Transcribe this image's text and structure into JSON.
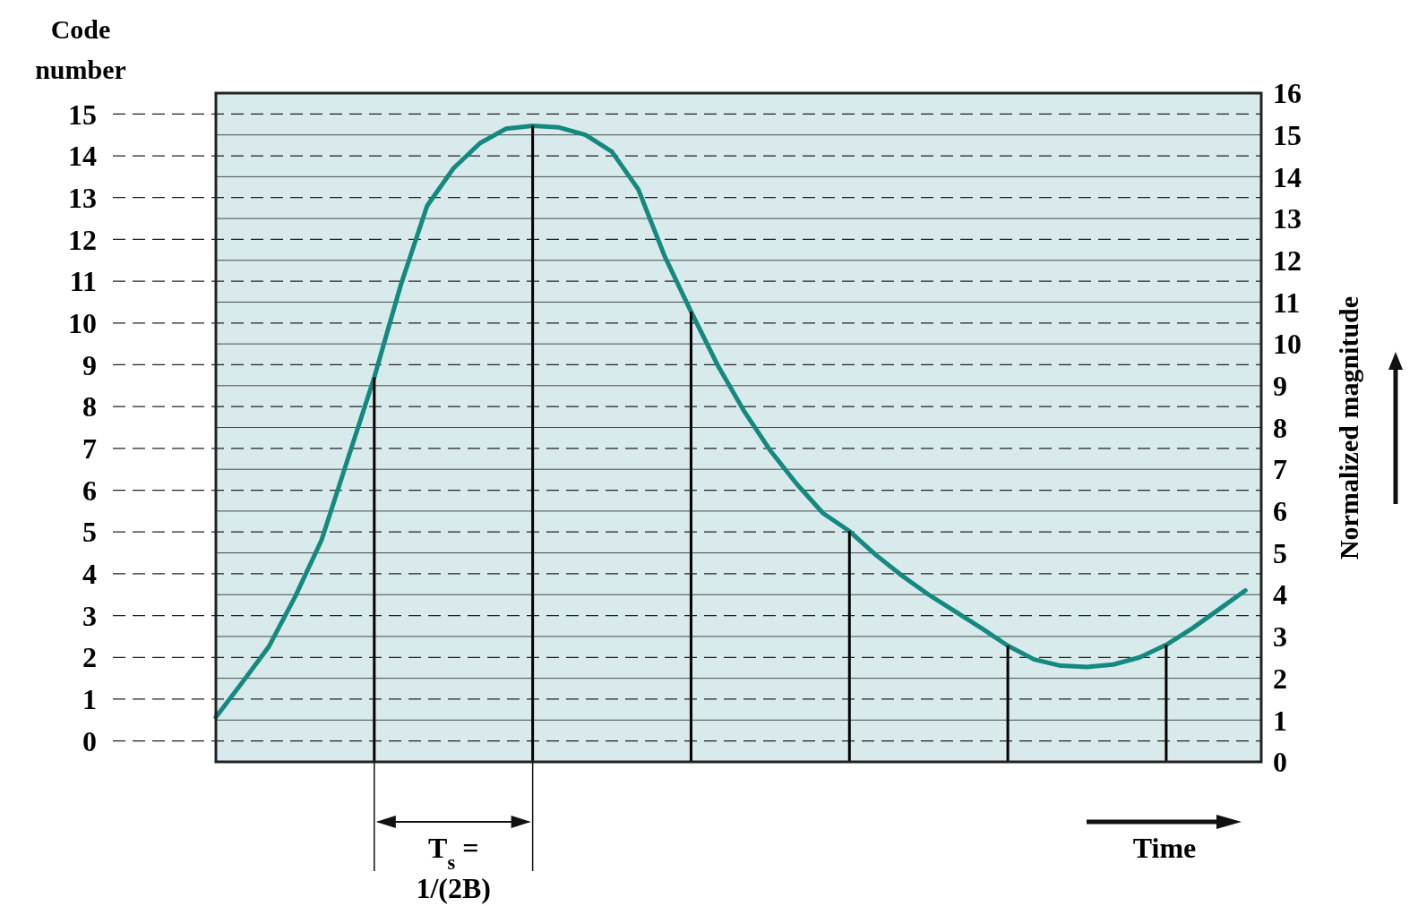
{
  "chart_data": {
    "type": "line",
    "categories": [
      null,
      null,
      null,
      null,
      null,
      null,
      null,
      null,
      null,
      null,
      null,
      null,
      null,
      null,
      null,
      null,
      null,
      null,
      null,
      null,
      null,
      null,
      null,
      null,
      null,
      null,
      null,
      null,
      null,
      null,
      null,
      null,
      null,
      null,
      null,
      null,
      null,
      null,
      null,
      null
    ],
    "ylim": [
      -0.5,
      15.5
    ],
    "yticks": [
      0,
      1,
      2,
      3,
      4,
      5,
      6,
      7,
      8,
      9,
      10,
      11,
      12,
      13,
      14,
      15
    ],
    "ylabel": "Code number",
    "y2lim": [
      0,
      16
    ],
    "y2ticks": [
      0,
      1,
      2,
      3,
      4,
      5,
      6,
      7,
      8,
      9,
      10,
      11,
      12,
      13,
      14,
      15,
      16
    ],
    "y2label": "Normalized magnitude",
    "grid": true,
    "annotations": [
      "T$_{s}$ = 1/(2B)",
      "Time"
    ],
    "series": [
      {
        "axis": "y2",
        "color": "#14897f",
        "values": [
          1.07,
          1.9,
          2.75,
          3.95,
          5.3,
          7.25,
          9.2,
          11.4,
          13.3,
          14.2,
          14.8,
          15.15,
          15.22,
          15.18,
          15.0,
          14.6,
          13.7,
          12.1,
          10.77,
          9.5,
          8.4,
          7.45,
          6.65,
          5.95,
          5.52,
          4.95,
          4.45,
          4.0,
          3.6,
          3.2,
          2.78,
          2.45,
          2.3,
          2.27,
          2.33,
          2.5,
          2.8,
          3.2,
          3.65,
          4.1
        ]
      },
      {
        "type": "bar",
        "axis": "y2",
        "color": "#000000",
        "values": [
          null,
          null,
          null,
          null,
          null,
          null,
          9.2,
          null,
          null,
          null,
          null,
          null,
          15.22,
          null,
          null,
          null,
          null,
          null,
          10.77,
          null,
          null,
          null,
          null,
          null,
          5.52,
          null,
          null,
          null,
          null,
          null,
          2.78,
          null,
          null,
          null,
          null,
          null,
          2.8,
          null,
          null,
          null
        ]
      }
    ]
  }
}
